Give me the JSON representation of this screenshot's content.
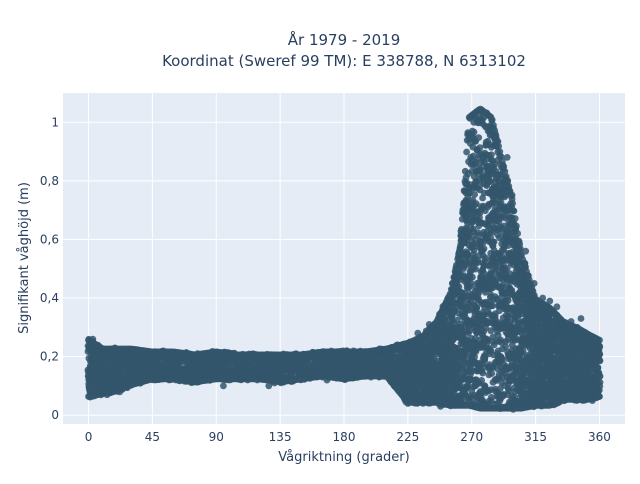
{
  "chart_data": {
    "type": "scatter",
    "title_line1": "År 1979 - 2019",
    "title_line2": "Koordinat (Sweref 99 TM): E 338788, N 6313102",
    "xlabel": "Vågriktning (grader)",
    "ylabel": "Signifikant våghöjd (m)",
    "xlim": [
      -18,
      378
    ],
    "ylim": [
      -0.03,
      1.1
    ],
    "xticks": [
      0,
      45,
      90,
      135,
      180,
      225,
      270,
      315,
      360
    ],
    "xtick_labels": [
      "0",
      "45",
      "90",
      "135",
      "180",
      "225",
      "270",
      "315",
      "360"
    ],
    "yticks": [
      0,
      0.2,
      0.4,
      0.6,
      0.8,
      1
    ],
    "ytick_labels": [
      "0",
      "0,2",
      "0,4",
      "0,6",
      "0,8",
      "1"
    ],
    "grid": true,
    "colors": {
      "marker": "#34566c",
      "plot_bg": "#e5ecf6",
      "grid": "#ffffff"
    },
    "envelope": [
      {
        "x": 0,
        "min": 0.06,
        "max": 0.26
      },
      {
        "x": 10,
        "min": 0.07,
        "max": 0.23
      },
      {
        "x": 20,
        "min": 0.08,
        "max": 0.23
      },
      {
        "x": 30,
        "min": 0.1,
        "max": 0.23
      },
      {
        "x": 45,
        "min": 0.12,
        "max": 0.22
      },
      {
        "x": 60,
        "min": 0.12,
        "max": 0.22
      },
      {
        "x": 75,
        "min": 0.11,
        "max": 0.21
      },
      {
        "x": 90,
        "min": 0.12,
        "max": 0.22
      },
      {
        "x": 105,
        "min": 0.12,
        "max": 0.21
      },
      {
        "x": 120,
        "min": 0.12,
        "max": 0.21
      },
      {
        "x": 135,
        "min": 0.11,
        "max": 0.21
      },
      {
        "x": 150,
        "min": 0.12,
        "max": 0.21
      },
      {
        "x": 165,
        "min": 0.13,
        "max": 0.22
      },
      {
        "x": 180,
        "min": 0.12,
        "max": 0.22
      },
      {
        "x": 195,
        "min": 0.13,
        "max": 0.22
      },
      {
        "x": 210,
        "min": 0.13,
        "max": 0.23
      },
      {
        "x": 225,
        "min": 0.04,
        "max": 0.25
      },
      {
        "x": 235,
        "min": 0.04,
        "max": 0.27
      },
      {
        "x": 245,
        "min": 0.04,
        "max": 0.32
      },
      {
        "x": 255,
        "min": 0.03,
        "max": 0.42
      },
      {
        "x": 262,
        "min": 0.03,
        "max": 0.58
      },
      {
        "x": 268,
        "min": 0.03,
        "max": 1.02
      },
      {
        "x": 276,
        "min": 0.02,
        "max": 1.05
      },
      {
        "x": 284,
        "min": 0.02,
        "max": 1.02
      },
      {
        "x": 290,
        "min": 0.02,
        "max": 0.9
      },
      {
        "x": 298,
        "min": 0.02,
        "max": 0.75
      },
      {
        "x": 305,
        "min": 0.02,
        "max": 0.55
      },
      {
        "x": 315,
        "min": 0.03,
        "max": 0.4
      },
      {
        "x": 325,
        "min": 0.03,
        "max": 0.37
      },
      {
        "x": 335,
        "min": 0.05,
        "max": 0.32
      },
      {
        "x": 345,
        "min": 0.05,
        "max": 0.3
      },
      {
        "x": 352,
        "min": 0.05,
        "max": 0.28
      },
      {
        "x": 360,
        "min": 0.06,
        "max": 0.26
      }
    ],
    "outliers": [
      {
        "x": 325,
        "y": 0.39
      },
      {
        "x": 330,
        "y": 0.37
      },
      {
        "x": 340,
        "y": 0.32
      },
      {
        "x": 347,
        "y": 0.33
      },
      {
        "x": 352,
        "y": 0.26
      },
      {
        "x": 355,
        "y": 0.05
      },
      {
        "x": 314,
        "y": 0.45
      },
      {
        "x": 308,
        "y": 0.56
      },
      {
        "x": 320,
        "y": 0.4
      },
      {
        "x": 295,
        "y": 0.88
      },
      {
        "x": 265,
        "y": 0.47
      },
      {
        "x": 257,
        "y": 0.39
      },
      {
        "x": 250,
        "y": 0.33
      },
      {
        "x": 240,
        "y": 0.31
      },
      {
        "x": 232,
        "y": 0.28
      },
      {
        "x": 225,
        "y": 0.04
      },
      {
        "x": 248,
        "y": 0.03
      },
      {
        "x": 127,
        "y": 0.1
      },
      {
        "x": 131,
        "y": 0.11
      },
      {
        "x": 95,
        "y": 0.1
      },
      {
        "x": 66,
        "y": 0.12
      },
      {
        "x": 3,
        "y": 0.26
      },
      {
        "x": 13,
        "y": 0.07
      },
      {
        "x": 22,
        "y": 0.08
      },
      {
        "x": 168,
        "y": 0.12
      },
      {
        "x": 185,
        "y": 0.13
      }
    ]
  }
}
